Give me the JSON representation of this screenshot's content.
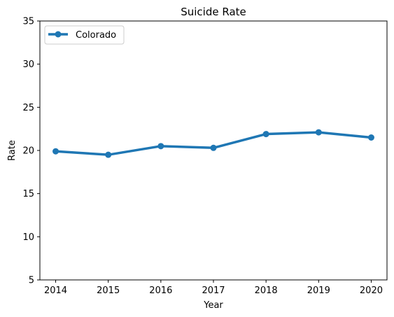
{
  "chart_data": {
    "type": "line",
    "title": "Suicide Rate",
    "xlabel": "Year",
    "ylabel": "Rate",
    "x": [
      2014,
      2015,
      2016,
      2017,
      2018,
      2019,
      2020
    ],
    "series": [
      {
        "name": "Colorado",
        "values": [
          19.9,
          19.5,
          20.5,
          20.3,
          21.9,
          22.1,
          21.5
        ],
        "color": "#1f77b4"
      }
    ],
    "xlim": [
      2013.7,
      2020.3
    ],
    "ylim": [
      5,
      35
    ],
    "yticks": [
      5,
      10,
      15,
      20,
      25,
      30,
      35
    ],
    "xticks": [
      2014,
      2015,
      2016,
      2017,
      2018,
      2019,
      2020
    ],
    "grid": false,
    "legend": "top-left"
  }
}
